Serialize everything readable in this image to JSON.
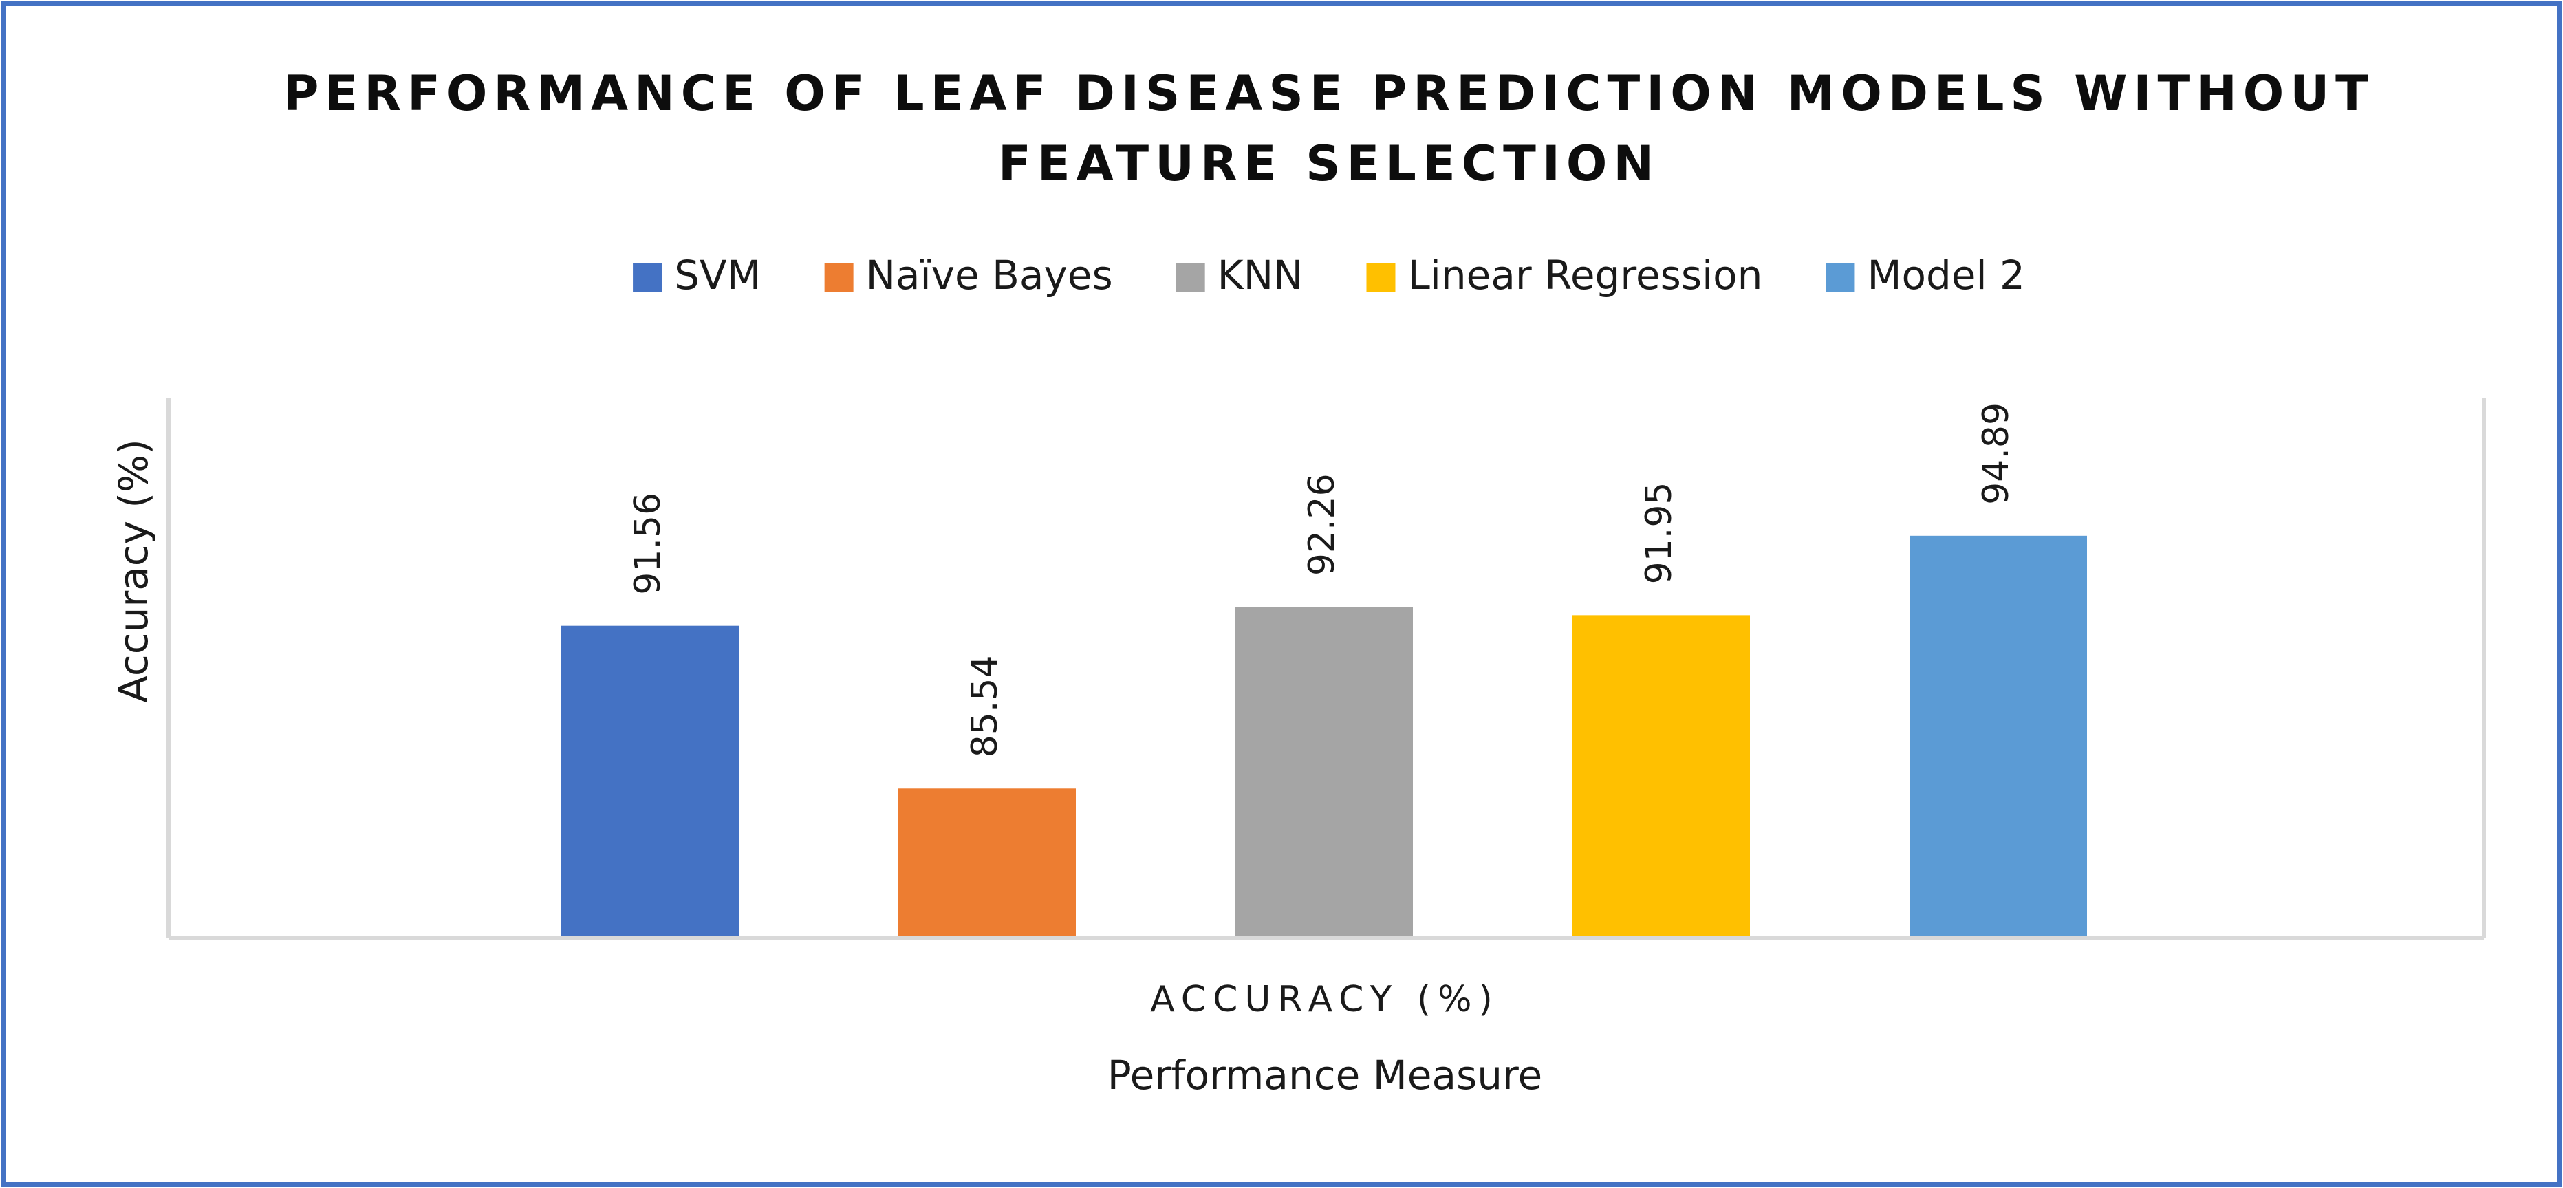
{
  "chart_data": {
    "type": "bar",
    "title": "PERFORMANCE OF LEAF DISEASE PREDICTION MODELS WITHOUT FEATURE SELECTION",
    "title_lines": [
      "PERFORMANCE OF LEAF DISEASE PREDICTION MODELS WITHOUT",
      "FEATURE SELECTION"
    ],
    "categories": [
      "ACCURACY (%)"
    ],
    "series": [
      {
        "name": "SVM",
        "values": [
          91.56
        ],
        "color": "#4472C4"
      },
      {
        "name": "Naïve Bayes",
        "values": [
          85.54
        ],
        "color": "#ED7D31"
      },
      {
        "name": "KNN",
        "values": [
          92.26
        ],
        "color": "#A5A5A5"
      },
      {
        "name": "Linear Regression",
        "values": [
          91.95
        ],
        "color": "#FFC000"
      },
      {
        "name": "Model 2",
        "values": [
          94.89
        ],
        "color": "#5B9BD5"
      }
    ],
    "xlabel": "Performance Measure",
    "ylabel": "Accuracy (%)",
    "ylim": [
      80,
      100
    ],
    "grid": false,
    "legend_position": "top",
    "data_labels": true,
    "data_label_orientation": "vertical",
    "frame_color": "#4472C4"
  }
}
